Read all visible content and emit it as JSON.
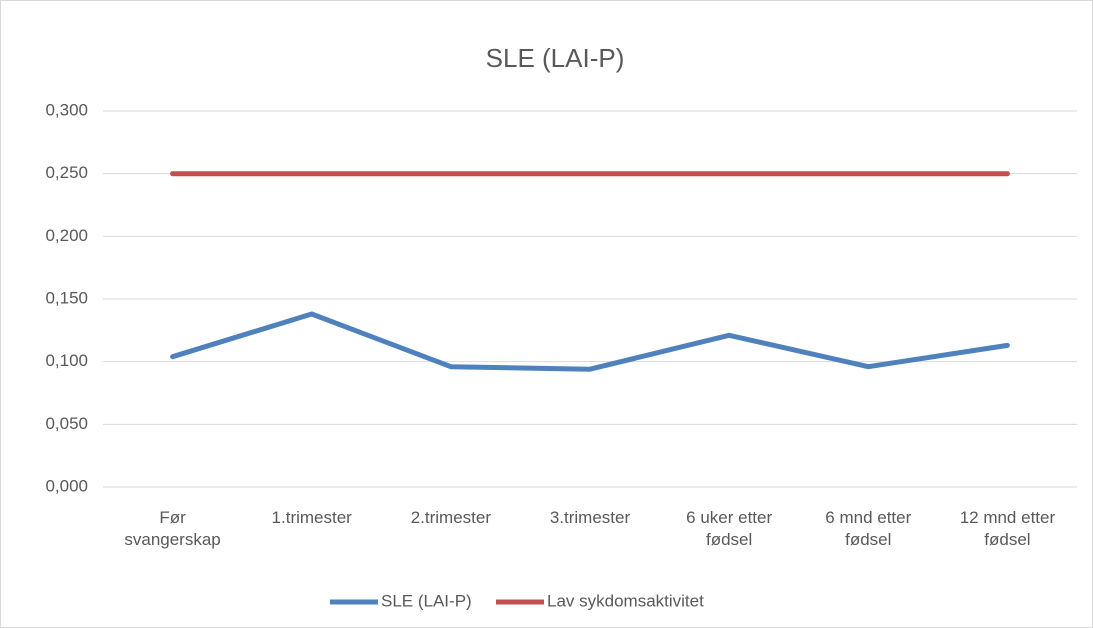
{
  "chart_data": {
    "type": "line",
    "title": "SLE (LAI-P)",
    "categories": [
      "Før svangerskap",
      "1.trimester",
      "2.trimester",
      "3.trimester",
      "6 uker etter fødsel",
      "6 mnd etter fødsel",
      "12 mnd etter fødsel"
    ],
    "series": [
      {
        "name": "SLE (LAI-P)",
        "color": "#4f81bd",
        "values": [
          0.104,
          0.138,
          0.096,
          0.094,
          0.121,
          0.096,
          0.113
        ]
      },
      {
        "name": "Lav sykdomsaktivitet",
        "color": "#c0504d",
        "values": [
          0.25,
          0.25,
          0.25,
          0.25,
          0.25,
          0.25,
          0.25
        ]
      }
    ],
    "ylim": [
      0,
      0.3
    ],
    "yticks": [
      {
        "value": 0,
        "label": "0,000"
      },
      {
        "value": 0.05,
        "label": "0,050"
      },
      {
        "value": 0.1,
        "label": "0,100"
      },
      {
        "value": 0.15,
        "label": "0,150"
      },
      {
        "value": 0.2,
        "label": "0,200"
      },
      {
        "value": 0.25,
        "label": "0,250"
      },
      {
        "value": 0.3,
        "label": "0,300"
      }
    ],
    "grid": true,
    "legend": "bottom"
  }
}
